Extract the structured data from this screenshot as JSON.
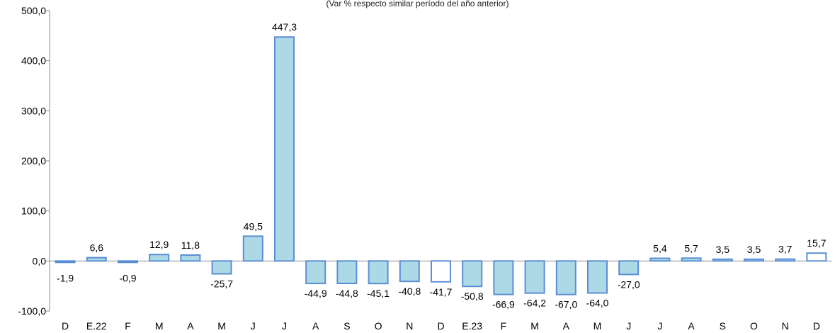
{
  "chart_data": {
    "type": "bar",
    "subtitle": "(Var % respecto similar período del año anterior)",
    "categories": [
      "D",
      "E.22",
      "F",
      "M",
      "A",
      "M",
      "J",
      "J",
      "A",
      "S",
      "O",
      "N",
      "D",
      "E.23",
      "F",
      "M",
      "A",
      "M",
      "J",
      "J",
      "A",
      "S",
      "O",
      "N",
      "D"
    ],
    "values": [
      -1.9,
      6.6,
      -0.9,
      12.9,
      11.8,
      -25.7,
      49.5,
      447.3,
      -44.9,
      -44.8,
      -45.1,
      -40.8,
      -41.7,
      -50.8,
      -66.9,
      -64.2,
      -67.0,
      -64.0,
      -27.0,
      5.4,
      5.7,
      3.5,
      3.5,
      3.7,
      15.7
    ],
    "data_labels": [
      "-1,9",
      "6,6",
      "-0,9",
      "12,9",
      "11,8",
      "-25,7",
      "49,5",
      "447,3",
      "-44,9",
      "-44,8",
      "-45,1",
      "-40,8",
      "-41,7",
      "-50,8",
      "-66,9",
      "-64,2",
      "-67,0",
      "-64,0",
      "-27,0",
      "5,4",
      "5,7",
      "3,5",
      "3,5",
      "3,7",
      "15,7"
    ],
    "hollow_bars": [
      12,
      24
    ],
    "y_ticks": [
      -100,
      0,
      100,
      200,
      300,
      400,
      500
    ],
    "y_tick_labels": [
      "-100,0",
      "0,0",
      "100,0",
      "200,0",
      "300,0",
      "400,0",
      "500,0"
    ],
    "ylim": [
      -100,
      500
    ],
    "grid": false,
    "legend": "none",
    "colors": {
      "fill": "#add8e6",
      "stroke": "#5b8fd4",
      "hollow_fill": "#ffffff",
      "axis": "#8a8a8a",
      "text": "#000000"
    }
  }
}
